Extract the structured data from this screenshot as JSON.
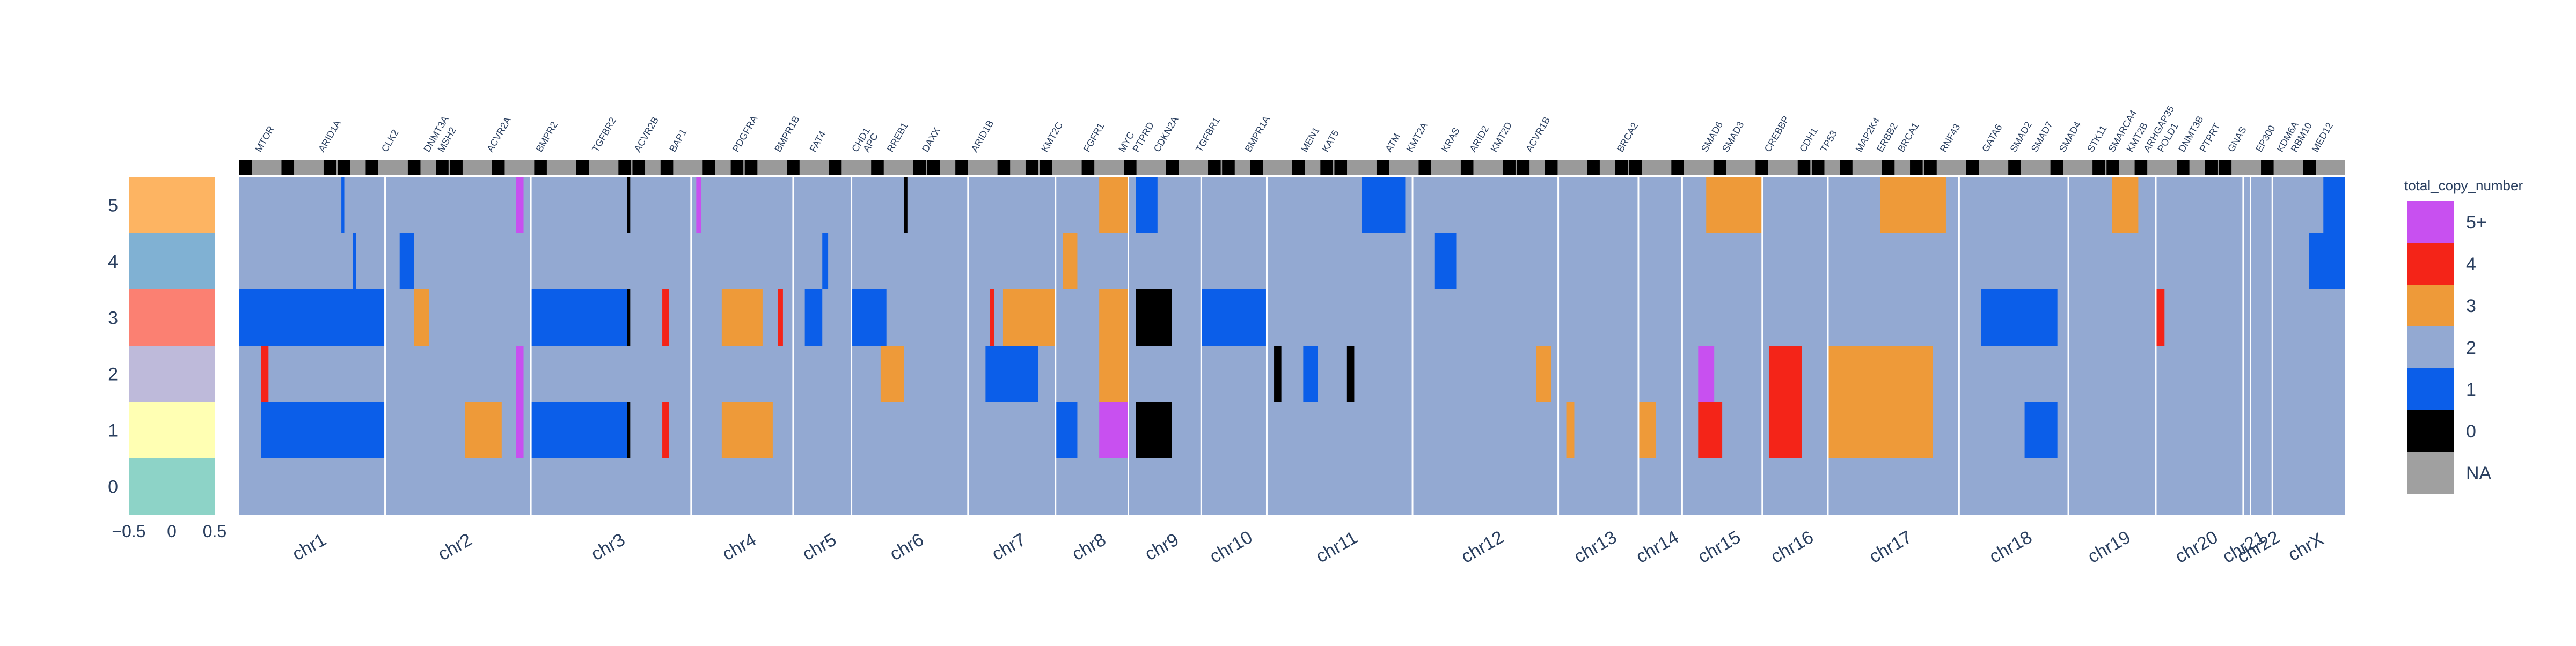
{
  "chart_data": {
    "type": "heatmap",
    "title": "",
    "xlabel": "",
    "ylabel": "",
    "samples": [
      "0",
      "1",
      "2",
      "3",
      "4",
      "5"
    ],
    "y_axis_ticks": [
      "0",
      "1",
      "2",
      "3",
      "4",
      "5"
    ],
    "sidebar_x_ticks": [
      "−0.5",
      "0",
      "0.5"
    ],
    "sample_colors": [
      "#8dd3c7",
      "#ffffb3",
      "#bebada",
      "#fb8072",
      "#80b1d3",
      "#fdb462"
    ],
    "legend": {
      "title": "total_copy_number",
      "entries": [
        {
          "label": "5+",
          "color": "#c850f0"
        },
        {
          "label": "4",
          "color": "#f42418"
        },
        {
          "label": "3",
          "color": "#ee9a39"
        },
        {
          "label": "2",
          "color": "#93a9d2"
        },
        {
          "label": "1",
          "color": "#0b5ee9"
        },
        {
          "label": "0",
          "color": "#000000"
        },
        {
          "label": "NA",
          "color": "#a0a0a0"
        }
      ]
    },
    "chromosomes": [
      {
        "name": "chr1",
        "width": 10
      },
      {
        "name": "chr2",
        "width": 10
      },
      {
        "name": "chr3",
        "width": 11
      },
      {
        "name": "chr4",
        "width": 7
      },
      {
        "name": "chr5",
        "width": 4
      },
      {
        "name": "chr6",
        "width": 8
      },
      {
        "name": "chr7",
        "width": 6
      },
      {
        "name": "chr8",
        "width": 5
      },
      {
        "name": "chr9",
        "width": 5
      },
      {
        "name": "chr10",
        "width": 4.5
      },
      {
        "name": "chr11",
        "width": 10
      },
      {
        "name": "chr12",
        "width": 10
      },
      {
        "name": "chr13",
        "width": 5.5
      },
      {
        "name": "chr14",
        "width": 3
      },
      {
        "name": "chr15",
        "width": 5.5
      },
      {
        "name": "chr16",
        "width": 4.5
      },
      {
        "name": "chr17",
        "width": 9
      },
      {
        "name": "chr18",
        "width": 7.5
      },
      {
        "name": "chr19",
        "width": 6
      },
      {
        "name": "chr20",
        "width": 6
      },
      {
        "name": "chr21",
        "width": 0.5
      },
      {
        "name": "chr22",
        "width": 1.5
      },
      {
        "name": "chrX",
        "width": 5
      }
    ],
    "gene_labels": [
      {
        "name": "MTOR",
        "pos": 1.5
      },
      {
        "name": "ARID1A",
        "pos": 6
      },
      {
        "name": "CLK2",
        "pos": 10.5
      },
      {
        "name": "DNMT3A",
        "pos": 13.5
      },
      {
        "name": "MSH2",
        "pos": 14.5
      },
      {
        "name": "ACVR2A",
        "pos": 18
      },
      {
        "name": "BMPR2",
        "pos": 21.5
      },
      {
        "name": "TGFBR2",
        "pos": 25.5
      },
      {
        "name": "ACVR2B",
        "pos": 28.5
      },
      {
        "name": "BAP1",
        "pos": 31
      },
      {
        "name": "PDGFRA",
        "pos": 35.5
      },
      {
        "name": "BMPR1B",
        "pos": 38.5
      },
      {
        "name": "FAT4",
        "pos": 41
      },
      {
        "name": "CHD1",
        "pos": 44
      },
      {
        "name": "APC",
        "pos": 44.8
      },
      {
        "name": "RREB1",
        "pos": 46.5
      },
      {
        "name": "DAXX",
        "pos": 49
      },
      {
        "name": "ARID1B",
        "pos": 52.5
      },
      {
        "name": "KMT2C",
        "pos": 57.5
      },
      {
        "name": "FGFR1",
        "pos": 60.5
      },
      {
        "name": "MYC",
        "pos": 63
      },
      {
        "name": "PTPRD",
        "pos": 64
      },
      {
        "name": "CDKN2A",
        "pos": 65.5
      },
      {
        "name": "TGFBR1",
        "pos": 68.5
      },
      {
        "name": "BMPR1A",
        "pos": 72
      },
      {
        "name": "MEN1",
        "pos": 76
      },
      {
        "name": "KAT5",
        "pos": 77.5
      },
      {
        "name": "ATM",
        "pos": 82
      },
      {
        "name": "KMT2A",
        "pos": 83.5
      },
      {
        "name": "KRAS",
        "pos": 86
      },
      {
        "name": "ARID2",
        "pos": 88
      },
      {
        "name": "KMT2D",
        "pos": 89.5
      },
      {
        "name": "ACVR1B",
        "pos": 92
      },
      {
        "name": "BRCA2",
        "pos": 98.5
      },
      {
        "name": "SMAD6",
        "pos": 104.5
      },
      {
        "name": "SMAD3",
        "pos": 106
      },
      {
        "name": "CREBBP",
        "pos": 109
      },
      {
        "name": "CDH1",
        "pos": 111.5
      },
      {
        "name": "TP53",
        "pos": 113
      },
      {
        "name": "MAP2K4",
        "pos": 115.5
      },
      {
        "name": "ERBB2",
        "pos": 117
      },
      {
        "name": "BRCA1",
        "pos": 118.5
      },
      {
        "name": "RNF43",
        "pos": 121.5
      },
      {
        "name": "GATA6",
        "pos": 124.5
      },
      {
        "name": "SMAD2",
        "pos": 126.5
      },
      {
        "name": "SMAD7",
        "pos": 128
      },
      {
        "name": "SMAD4",
        "pos": 130
      },
      {
        "name": "STK11",
        "pos": 132
      },
      {
        "name": "SMARCA4",
        "pos": 133.5
      },
      {
        "name": "KMT2B",
        "pos": 134.8
      },
      {
        "name": "ARHGAP35",
        "pos": 136
      },
      {
        "name": "POLD1",
        "pos": 137
      },
      {
        "name": "DNMT3B",
        "pos": 138.5
      },
      {
        "name": "PTPRT",
        "pos": 140
      },
      {
        "name": "GNAS",
        "pos": 142
      },
      {
        "name": "EP300",
        "pos": 144
      },
      {
        "name": "KDM6A",
        "pos": 145.5
      },
      {
        "name": "RBM10",
        "pos": 146.5
      },
      {
        "name": "MED12",
        "pos": 148
      }
    ],
    "segments": [
      {
        "sample": "1",
        "chr": "chr1",
        "start": 0.15,
        "end": 1,
        "cn": "1"
      },
      {
        "sample": "3",
        "chr": "chr1",
        "start": 0,
        "end": 1,
        "cn": "1"
      },
      {
        "sample": "2",
        "chr": "chr1",
        "start": 0.15,
        "end": 0.2,
        "cn": "4"
      },
      {
        "sample": "5",
        "chr": "chr1",
        "start": 0.7,
        "end": 0.72,
        "cn": "1"
      },
      {
        "sample": "4",
        "chr": "chr1",
        "start": 0.78,
        "end": 0.8,
        "cn": "1"
      },
      {
        "sample": "1",
        "chr": "chr2",
        "start": 0.55,
        "end": 0.8,
        "cn": "3"
      },
      {
        "sample": "3",
        "chr": "chr2",
        "start": 0.2,
        "end": 0.3,
        "cn": "3"
      },
      {
        "sample": "4",
        "chr": "chr2",
        "start": 0.1,
        "end": 0.2,
        "cn": "1"
      },
      {
        "sample": "5",
        "chr": "chr2",
        "start": 0.9,
        "end": 0.95,
        "cn": "5+"
      },
      {
        "sample": "1",
        "chr": "chr2",
        "start": 0.9,
        "end": 0.95,
        "cn": "5+"
      },
      {
        "sample": "2",
        "chr": "chr2",
        "start": 0.9,
        "end": 0.95,
        "cn": "5+"
      },
      {
        "sample": "1",
        "chr": "chr3",
        "start": 0,
        "end": 0.6,
        "cn": "1"
      },
      {
        "sample": "3",
        "chr": "chr3",
        "start": 0,
        "end": 0.6,
        "cn": "1"
      },
      {
        "sample": "1",
        "chr": "chr3",
        "start": 0.6,
        "end": 0.62,
        "cn": "0"
      },
      {
        "sample": "3",
        "chr": "chr3",
        "start": 0.6,
        "end": 0.62,
        "cn": "0"
      },
      {
        "sample": "3",
        "chr": "chr3",
        "start": 0.82,
        "end": 0.86,
        "cn": "4"
      },
      {
        "sample": "1",
        "chr": "chr3",
        "start": 0.82,
        "end": 0.86,
        "cn": "4"
      },
      {
        "sample": "5",
        "chr": "chr3",
        "start": 0.6,
        "end": 0.62,
        "cn": "0"
      },
      {
        "sample": "1",
        "chr": "chr4",
        "start": 0.3,
        "end": 0.8,
        "cn": "3"
      },
      {
        "sample": "3",
        "chr": "chr4",
        "start": 0.3,
        "end": 0.7,
        "cn": "3"
      },
      {
        "sample": "5",
        "chr": "chr4",
        "start": 0.05,
        "end": 0.1,
        "cn": "5+"
      },
      {
        "sample": "3",
        "chr": "chr4",
        "start": 0.85,
        "end": 0.9,
        "cn": "4"
      },
      {
        "sample": "3",
        "chr": "chr5",
        "start": 0.2,
        "end": 0.5,
        "cn": "1"
      },
      {
        "sample": "4",
        "chr": "chr5",
        "start": 0.5,
        "end": 0.6,
        "cn": "1"
      },
      {
        "sample": "3",
        "chr": "chr6",
        "start": 0,
        "end": 0.3,
        "cn": "1"
      },
      {
        "sample": "2",
        "chr": "chr6",
        "start": 0.25,
        "end": 0.45,
        "cn": "3"
      },
      {
        "sample": "5",
        "chr": "chr6",
        "start": 0.45,
        "end": 0.48,
        "cn": "0"
      },
      {
        "sample": "3",
        "chr": "chr7",
        "start": 0.4,
        "end": 1,
        "cn": "3"
      },
      {
        "sample": "2",
        "chr": "chr7",
        "start": 0.2,
        "end": 0.8,
        "cn": "1"
      },
      {
        "sample": "3",
        "chr": "chr7",
        "start": 0.25,
        "end": 0.3,
        "cn": "4"
      },
      {
        "sample": "1",
        "chr": "chr8",
        "start": 0,
        "end": 0.3,
        "cn": "1"
      },
      {
        "sample": "4",
        "chr": "chr8",
        "start": 0.1,
        "end": 0.3,
        "cn": "3"
      },
      {
        "sample": "5",
        "chr": "chr8",
        "start": 0.6,
        "end": 1,
        "cn": "3"
      },
      {
        "sample": "1",
        "chr": "chr8",
        "start": 0.6,
        "end": 1,
        "cn": "5+"
      },
      {
        "sample": "2",
        "chr": "chr8",
        "start": 0.6,
        "end": 1,
        "cn": "3"
      },
      {
        "sample": "3",
        "chr": "chr8",
        "start": 0.6,
        "end": 1,
        "cn": "3"
      },
      {
        "sample": "1",
        "chr": "chr9",
        "start": 0.1,
        "end": 0.6,
        "cn": "0"
      },
      {
        "sample": "3",
        "chr": "chr9",
        "start": 0.1,
        "end": 0.6,
        "cn": "0"
      },
      {
        "sample": "2",
        "chr": "chr9",
        "start": 0.1,
        "end": 0.9,
        "cn": "2"
      },
      {
        "sample": "5",
        "chr": "chr9",
        "start": 0.1,
        "end": 0.4,
        "cn": "1"
      },
      {
        "sample": "3",
        "chr": "chr10",
        "start": 0,
        "end": 1,
        "cn": "1"
      },
      {
        "sample": "2",
        "chr": "chr11",
        "start": 0.05,
        "end": 0.1,
        "cn": "0"
      },
      {
        "sample": "2",
        "chr": "chr11",
        "start": 0.25,
        "end": 0.35,
        "cn": "1"
      },
      {
        "sample": "2",
        "chr": "chr11",
        "start": 0.55,
        "end": 0.6,
        "cn": "0"
      },
      {
        "sample": "5",
        "chr": "chr11",
        "start": 0.65,
        "end": 0.95,
        "cn": "1"
      },
      {
        "sample": "4",
        "chr": "chr12",
        "start": 0.15,
        "end": 0.3,
        "cn": "1"
      },
      {
        "sample": "2",
        "chr": "chr12",
        "start": 0.85,
        "end": 0.95,
        "cn": "3"
      },
      {
        "sample": "1",
        "chr": "chr13",
        "start": 0.1,
        "end": 0.2,
        "cn": "3"
      },
      {
        "sample": "1",
        "chr": "chr14",
        "start": 0,
        "end": 0.4,
        "cn": "3"
      },
      {
        "sample": "5",
        "chr": "chr15",
        "start": 0.3,
        "end": 1,
        "cn": "3"
      },
      {
        "sample": "2",
        "chr": "chr15",
        "start": 0.2,
        "end": 0.4,
        "cn": "5+"
      },
      {
        "sample": "1",
        "chr": "chr15",
        "start": 0.2,
        "end": 0.5,
        "cn": "4"
      },
      {
        "sample": "2",
        "chr": "chr16",
        "start": 0.1,
        "end": 0.6,
        "cn": "4"
      },
      {
        "sample": "1",
        "chr": "chr16",
        "start": 0.1,
        "end": 0.6,
        "cn": "4"
      },
      {
        "sample": "5",
        "chr": "chr17",
        "start": 0.4,
        "end": 0.9,
        "cn": "3"
      },
      {
        "sample": "2",
        "chr": "chr17",
        "start": 0,
        "end": 0.8,
        "cn": "3"
      },
      {
        "sample": "1",
        "chr": "chr17",
        "start": 0,
        "end": 0.8,
        "cn": "3"
      },
      {
        "sample": "3",
        "chr": "chr18",
        "start": 0.2,
        "end": 0.9,
        "cn": "1"
      },
      {
        "sample": "1",
        "chr": "chr18",
        "start": 0.6,
        "end": 0.9,
        "cn": "1"
      },
      {
        "sample": "5",
        "chr": "chr19",
        "start": 0.5,
        "end": 0.8,
        "cn": "3"
      },
      {
        "sample": "3",
        "chr": "chr20",
        "start": 0,
        "end": 0.1,
        "cn": "4"
      },
      {
        "sample": "4",
        "chr": "chrX",
        "start": 0.5,
        "end": 1,
        "cn": "1"
      },
      {
        "sample": "5",
        "chr": "chrX",
        "start": 0.7,
        "end": 1,
        "cn": "1"
      }
    ]
  }
}
